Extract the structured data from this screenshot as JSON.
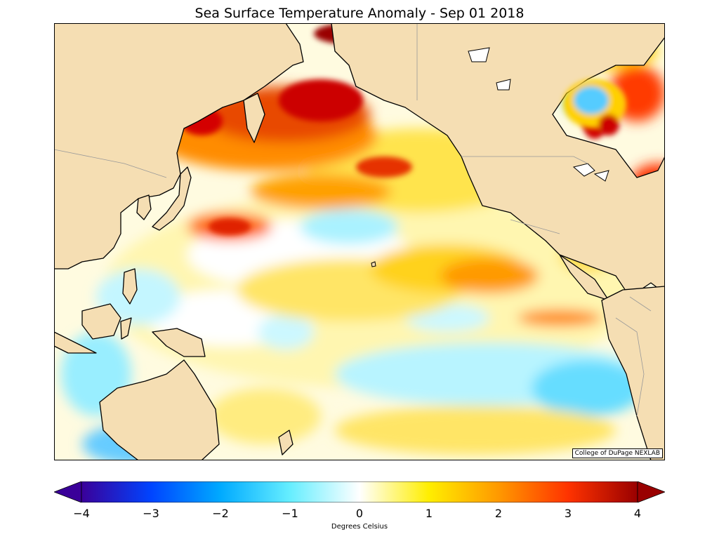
{
  "title": "Sea Surface Temperature Anomaly - Sep 01 2018",
  "credit": "College of DuPage NEXLAB",
  "colorbar": {
    "label": "Degrees Celsius",
    "ticks": [
      "−4",
      "−3",
      "−2",
      "−1",
      "0",
      "1",
      "2",
      "3",
      "4"
    ],
    "range": [
      -4,
      4
    ],
    "extend": "both",
    "stops": [
      "#3a0099",
      "#0055ff",
      "#00aaff",
      "#66eeff",
      "#ffffff",
      "#ffee00",
      "#ff9900",
      "#ff3300",
      "#990000"
    ]
  },
  "colors": {
    "land": "#f5deb3",
    "coast": "#000000",
    "border": "#999999",
    "cold": "#a8f0ff",
    "neutral": "#ffffff",
    "warm_light": "#fff3a0",
    "warm": "#ffd500",
    "hot": "#ff7a00",
    "very_hot": "#d40000"
  }
}
